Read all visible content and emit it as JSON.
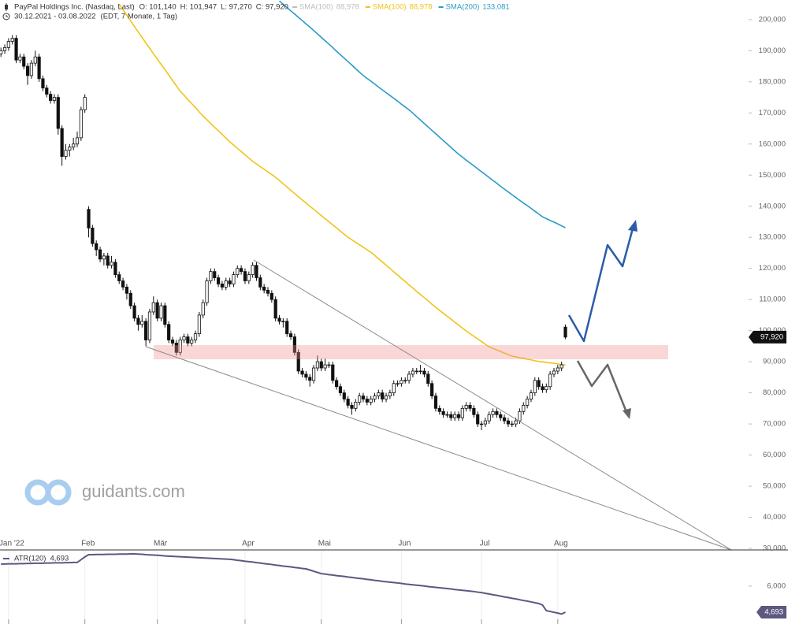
{
  "chart_data": [
    {
      "type": "candlestick",
      "title": "PayPal Holdings Inc. (Nasdaq, Last)",
      "ohlc": [
        "O: 101,140",
        "H: 101,947",
        "L: 97,270",
        "C: 97,920"
      ],
      "range": "30.12.2021 - 03.08.2022",
      "detail": "(EDT, 7 Monate, 1 Tag)",
      "watermark": "guidants.com",
      "last_label": "97,920",
      "categories": [
        null,
        null,
        "Jan '22",
        null,
        null,
        null,
        null,
        null,
        null,
        null,
        null,
        null,
        null,
        null,
        null,
        null,
        null,
        null,
        null,
        null,
        null,
        null,
        "Feb",
        null,
        null,
        null,
        null,
        null,
        null,
        null,
        null,
        null,
        null,
        null,
        null,
        null,
        null,
        null,
        null,
        null,
        null,
        "Mär",
        null,
        null,
        null,
        null,
        null,
        null,
        null,
        null,
        null,
        null,
        null,
        null,
        null,
        null,
        null,
        null,
        null,
        null,
        null,
        null,
        null,
        null,
        "Apr",
        null,
        null,
        null,
        null,
        null,
        null,
        null,
        null,
        null,
        null,
        null,
        null,
        null,
        null,
        null,
        null,
        null,
        null,
        null,
        "Mai",
        null,
        null,
        null,
        null,
        null,
        null,
        null,
        null,
        null,
        null,
        null,
        null,
        null,
        null,
        null,
        null,
        null,
        null,
        null,
        null,
        "Jun",
        null,
        null,
        null,
        null,
        null,
        null,
        null,
        null,
        null,
        null,
        null,
        null,
        null,
        null,
        null,
        null,
        null,
        null,
        null,
        null,
        "Jul",
        null,
        null,
        null,
        null,
        null,
        null,
        null,
        null,
        null,
        null,
        null,
        null,
        null,
        null,
        null,
        null,
        null,
        null,
        null,
        "Aug",
        null,
        null
      ],
      "open": [
        189,
        190,
        191,
        193,
        194,
        187,
        188,
        185,
        182,
        186,
        188,
        181,
        178,
        176,
        174,
        175,
        165,
        156,
        158,
        159,
        160,
        162,
        171,
        139,
        133,
        128,
        126,
        123,
        124,
        121,
        122,
        118,
        116,
        114,
        112,
        108,
        104,
        102,
        103,
        97,
        106,
        109,
        104,
        108,
        102,
        97,
        96,
        93,
        97,
        98,
        96,
        97,
        99,
        105,
        109,
        116,
        119,
        117,
        115,
        114,
        116,
        115,
        118,
        120,
        119,
        116,
        118,
        121,
        117,
        114,
        113,
        112,
        110,
        104,
        103,
        103,
        99,
        98,
        93,
        87,
        86,
        85,
        84,
        88,
        90,
        88,
        89,
        89,
        84,
        82,
        80,
        78,
        76,
        75,
        77,
        79,
        78,
        77,
        78,
        79,
        80,
        78,
        79,
        80,
        83,
        83,
        84,
        84,
        86,
        87,
        87,
        87,
        86,
        83,
        79,
        75,
        74,
        73,
        73,
        72,
        73,
        72,
        75,
        76,
        75,
        73,
        70,
        70,
        71,
        73,
        74,
        73,
        72,
        71,
        70,
        70,
        71,
        74,
        76,
        78,
        80,
        84,
        82,
        81,
        82,
        86,
        87,
        88,
        101.14
      ],
      "high": [
        191,
        192,
        194,
        195,
        195,
        189,
        189,
        186,
        187,
        190,
        189,
        182,
        179,
        177,
        176,
        176,
        166,
        160,
        160,
        162,
        164,
        172,
        176,
        140,
        134,
        129,
        127,
        125,
        125,
        124,
        123,
        119,
        117,
        115,
        113,
        109,
        105,
        105,
        104,
        107,
        111,
        110,
        109,
        109,
        103,
        98,
        97,
        98,
        99,
        99,
        98,
        100,
        106,
        110,
        117,
        120,
        120,
        118,
        116,
        117,
        117,
        119,
        121,
        121,
        120,
        119,
        122,
        122,
        118,
        115,
        114,
        113,
        111,
        105,
        104,
        104,
        100,
        99,
        94,
        88,
        87,
        86,
        89,
        92,
        91,
        91,
        90,
        90,
        85,
        83,
        81,
        79,
        77,
        78,
        80,
        80,
        79,
        79,
        80,
        81,
        81,
        80,
        81,
        84,
        84,
        85,
        85,
        87,
        88,
        88,
        89,
        88,
        87,
        84,
        80,
        76,
        75,
        74,
        74,
        74,
        74,
        76,
        77,
        77,
        76,
        74,
        71,
        72,
        74,
        75,
        75,
        74,
        73,
        72,
        71,
        72,
        75,
        77,
        79,
        81,
        85,
        85,
        83,
        83,
        87,
        88,
        89,
        90,
        101.947
      ],
      "low": [
        188,
        189,
        190,
        192,
        186,
        186,
        184,
        179,
        181,
        185,
        180,
        177,
        175,
        173,
        173,
        163,
        153,
        155,
        156,
        158,
        159,
        161,
        170,
        130,
        127,
        124,
        122,
        121,
        120,
        120,
        117,
        115,
        113,
        110,
        107,
        103,
        100,
        101,
        95,
        96,
        105,
        103,
        103,
        101,
        96,
        95,
        92,
        92,
        96,
        95,
        95,
        96,
        98,
        104,
        108,
        115,
        116,
        114,
        113,
        113,
        114,
        114,
        117,
        118,
        115,
        115,
        117,
        116,
        113,
        112,
        111,
        109,
        103,
        102,
        101,
        98,
        97,
        92,
        86,
        85,
        84,
        82,
        83,
        87,
        87,
        87,
        88,
        83,
        81,
        79,
        77,
        75,
        73,
        74,
        76,
        77,
        76,
        76,
        77,
        78,
        77,
        77,
        78,
        79,
        82,
        82,
        83,
        83,
        85,
        86,
        86,
        85,
        82,
        78,
        74,
        73,
        72,
        72,
        71,
        71,
        71,
        71,
        74,
        74,
        72,
        69,
        68,
        69,
        70,
        72,
        72,
        71,
        70,
        69,
        69,
        69,
        70,
        73,
        75,
        77,
        79,
        81,
        80,
        80,
        81,
        85,
        86,
        87,
        97.27
      ],
      "close": [
        190,
        191,
        193,
        194,
        187,
        188,
        185,
        182,
        186,
        188,
        181,
        178,
        176,
        174,
        175,
        165,
        156,
        158,
        159,
        160,
        162,
        171,
        175,
        133,
        128,
        126,
        123,
        124,
        121,
        122,
        118,
        116,
        114,
        112,
        108,
        104,
        102,
        103,
        97,
        106,
        109,
        104,
        108,
        102,
        97,
        96,
        93,
        97,
        98,
        96,
        97,
        99,
        105,
        109,
        116,
        119,
        117,
        115,
        114,
        116,
        115,
        118,
        120,
        119,
        116,
        118,
        121,
        117,
        114,
        113,
        112,
        110,
        104,
        103,
        103,
        99,
        98,
        93,
        87,
        86,
        85,
        84,
        88,
        90,
        88,
        89,
        89,
        84,
        82,
        80,
        78,
        76,
        75,
        77,
        79,
        78,
        77,
        78,
        79,
        80,
        78,
        79,
        80,
        83,
        83,
        84,
        84,
        86,
        87,
        87,
        87,
        86,
        83,
        79,
        75,
        74,
        73,
        73,
        72,
        73,
        72,
        75,
        76,
        75,
        73,
        70,
        70,
        71,
        73,
        74,
        73,
        72,
        71,
        70,
        70,
        71,
        74,
        76,
        78,
        80,
        84,
        82,
        81,
        82,
        86,
        87,
        88,
        89,
        97.92
      ],
      "indicators": [
        {
          "name": "SMA(100)",
          "label": "88,978",
          "color": "#bdbdbd"
        },
        {
          "name": "SMA(100)",
          "label": "88,978",
          "color": "#f0c419",
          "values": [
            null,
            null,
            null,
            null,
            null,
            null,
            null,
            null,
            null,
            null,
            null,
            null,
            null,
            null,
            null,
            null,
            null,
            null,
            null,
            null,
            null,
            null,
            null,
            null,
            null,
            null,
            null,
            null,
            null,
            null,
            null,
            205,
            203.2,
            201.4,
            199.6,
            197.8,
            196,
            194.3,
            192.5,
            190.8,
            189,
            187.3,
            185.6,
            183.9,
            182.2,
            180.4,
            178.7,
            177,
            175.7,
            174.3,
            173,
            171.7,
            170.3,
            169,
            167.8,
            166.6,
            165.4,
            164.3,
            163.1,
            161.9,
            160.7,
            159.7,
            158.6,
            157.6,
            156.5,
            155.5,
            154.4,
            153.6,
            152.7,
            151.9,
            151,
            150.2,
            149.3,
            148.3,
            147.2,
            146.2,
            145.1,
            144.1,
            143,
            142,
            141,
            140,
            139,
            138,
            137,
            136,
            135,
            134,
            133,
            132,
            131,
            130,
            129.2,
            128.4,
            127.6,
            126.8,
            126,
            125.2,
            124.2,
            123.1,
            122.1,
            121,
            120,
            118.9,
            117.9,
            116.8,
            115.8,
            114.7,
            113.7,
            112.6,
            111.6,
            110.6,
            109.6,
            108.5,
            107.5,
            106.5,
            105.6,
            104.6,
            103.7,
            102.7,
            101.8,
            100.8,
            99.9,
            99,
            98.2,
            97.3,
            96.5,
            95.6,
            94.8,
            94.3,
            93.8,
            93.3,
            92.8,
            92.3,
            91.8,
            91.6,
            91.3,
            91.1,
            90.8,
            90.6,
            90.3,
            90.1,
            89.96,
            89.8,
            89.6,
            89.5,
            89.3,
            89.1,
            88.978
          ]
        },
        {
          "name": "SMA(200)",
          "label": "133,081",
          "color": "#2a9bc8",
          "values": [
            null,
            null,
            null,
            null,
            null,
            null,
            null,
            null,
            null,
            null,
            null,
            null,
            null,
            null,
            null,
            null,
            null,
            null,
            null,
            null,
            null,
            null,
            null,
            null,
            null,
            null,
            null,
            null,
            null,
            null,
            null,
            null,
            null,
            null,
            null,
            null,
            null,
            null,
            null,
            null,
            null,
            null,
            null,
            null,
            null,
            null,
            null,
            null,
            null,
            null,
            null,
            null,
            null,
            null,
            null,
            null,
            null,
            null,
            null,
            null,
            null,
            null,
            null,
            null,
            null,
            null,
            null,
            null,
            null,
            null,
            null,
            null,
            null,
            206,
            204.9,
            203.9,
            202.8,
            201.8,
            200.7,
            199.7,
            198.6,
            197.6,
            196.5,
            195.4,
            194.3,
            193.2,
            192.1,
            191,
            189.8,
            188.7,
            187.6,
            186.5,
            185.4,
            184.2,
            183.1,
            182,
            181.1,
            180.2,
            179.3,
            178.3,
            177.4,
            176.5,
            175.6,
            174.7,
            173.8,
            172.8,
            171.9,
            171,
            169.9,
            168.8,
            167.7,
            166.6,
            165.5,
            164.4,
            163.3,
            162.2,
            161.1,
            160,
            158.9,
            157.8,
            156.7,
            155.8,
            154.8,
            153.9,
            153,
            152,
            151.1,
            150.2,
            149.2,
            148.3,
            147.4,
            146.4,
            145.5,
            144.6,
            143.7,
            142.8,
            141.9,
            141,
            140.2,
            139.3,
            138.4,
            137.5,
            136.6,
            136,
            135.4,
            134.9,
            134.3,
            133.7,
            133.081
          ]
        }
      ],
      "ylim": [
        30,
        206.3
      ],
      "yticks": [
        {
          "value": 30,
          "label": "30,000"
        },
        {
          "value": 40,
          "label": "40,000"
        },
        {
          "value": 50,
          "label": "50,000"
        },
        {
          "value": 60,
          "label": "60,000"
        },
        {
          "value": 70,
          "label": "70,000"
        },
        {
          "value": 80,
          "label": "80,000"
        },
        {
          "value": 90,
          "label": "90,000"
        },
        {
          "value": 100,
          "label": "100,000"
        },
        {
          "value": 110,
          "label": "110,000"
        },
        {
          "value": 120,
          "label": "120,000"
        },
        {
          "value": 130,
          "label": "130,000"
        },
        {
          "value": 140,
          "label": "140,000"
        },
        {
          "value": 150,
          "label": "150,000"
        },
        {
          "value": 160,
          "label": "160,000"
        },
        {
          "value": 170,
          "label": "170,000"
        },
        {
          "value": 180,
          "label": "180,000"
        },
        {
          "value": 190,
          "label": "190,000"
        },
        {
          "value": 200,
          "label": "200,000"
        }
      ]
    },
    {
      "type": "line",
      "name": "ATR(120)",
      "label": "4,693",
      "color": "#5c5880",
      "values": [
        7.11,
        7.11,
        7.12,
        7.12,
        7.12,
        7.13,
        7.13,
        7.14,
        7.14,
        7.15,
        7.15,
        7.15,
        7.16,
        7.16,
        7.17,
        7.17,
        7.17,
        7.18,
        7.18,
        7.19,
        7.19,
        7.33,
        7.47,
        7.58,
        7.58,
        7.59,
        7.59,
        7.59,
        7.6,
        7.6,
        7.6,
        7.61,
        7.61,
        7.61,
        7.62,
        7.62,
        7.61,
        7.6,
        7.58,
        7.57,
        7.56,
        7.55,
        7.54,
        7.52,
        7.51,
        7.5,
        7.49,
        7.48,
        7.47,
        7.46,
        7.45,
        7.44,
        7.43,
        7.42,
        7.41,
        7.4,
        7.39,
        7.38,
        7.37,
        7.36,
        7.35,
        7.33,
        7.3,
        7.28,
        7.25,
        7.23,
        7.21,
        7.18,
        7.16,
        7.13,
        7.11,
        7.09,
        7.06,
        7.04,
        7.01,
        6.99,
        6.97,
        6.94,
        6.92,
        6.89,
        6.87,
        6.81,
        6.75,
        6.69,
        6.63,
        6.61,
        6.58,
        6.56,
        6.53,
        6.51,
        6.49,
        6.46,
        6.44,
        6.41,
        6.39,
        6.37,
        6.34,
        6.32,
        6.29,
        6.27,
        6.24,
        6.22,
        6.2,
        6.18,
        6.16,
        6.14,
        6.11,
        6.09,
        6.07,
        6.05,
        6.03,
        6.01,
        5.98,
        5.96,
        5.94,
        5.92,
        5.9,
        5.88,
        5.86,
        5.83,
        5.81,
        5.79,
        5.77,
        5.75,
        5.73,
        5.7,
        5.68,
        5.64,
        5.61,
        5.57,
        5.54,
        5.5,
        5.46,
        5.43,
        5.39,
        5.36,
        5.32,
        5.28,
        5.25,
        5.21,
        5.17,
        5.13,
        5.05,
        4.77,
        4.73,
        4.69,
        4.65,
        4.6,
        4.693
      ],
      "ylim": [
        4.1,
        7.78
      ],
      "yticks": [
        {
          "value": 6,
          "label": "6,000"
        }
      ]
    }
  ]
}
